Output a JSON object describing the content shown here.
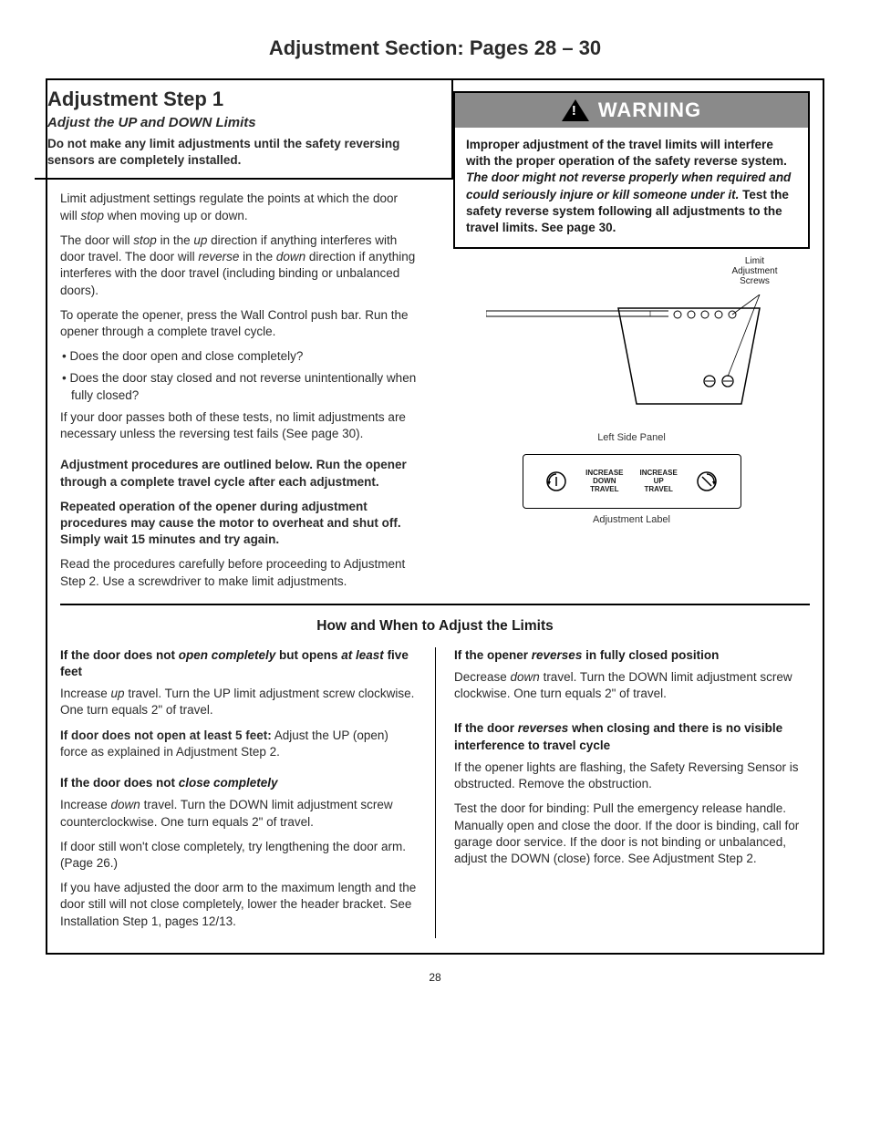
{
  "page_header": "Adjustment Section:  Pages 28 – 30",
  "step_title": "Adjustment Step 1",
  "step_subtitle": "Adjust the UP and DOWN Limits",
  "top_box_text": "Do not make any limit adjustments until the safety reversing sensors are completely installed.",
  "left": {
    "p1a": "Limit adjustment settings regulate the points at which the door will ",
    "p1b": "stop",
    "p1c": " when moving up or down.",
    "p2": "The door will <i>stop</i> in the <i>up</i> direction if anything interferes with door travel. The door will <i>reverse</i> in the <i>down</i> direction if anything interferes with the door travel (including binding or unbalanced doors).",
    "p3": "To operate the opener, press the Wall Control push bar. Run the opener through a complete travel cycle.",
    "b1": "• Does the door open and close completely?",
    "b2": "• Does the door stay closed and not reverse unintentionally when fully closed?",
    "p4": "If your door passes both of these tests, no limit adjustments are necessary unless the reversing test fails (See page 30).",
    "p5": "Adjustment procedures are outlined below. Run the opener through a complete travel cycle after each adjustment.",
    "p6": "Repeated operation of the opener during adjustment procedures may cause the motor to overheat and shut off. Simply wait 15 minutes and try again.",
    "p7": "Read the procedures carefully before proceeding to Adjustment Step 2. Use a screwdriver to make limit adjustments."
  },
  "warning": {
    "title": "WARNING",
    "body_a": "Improper adjustment of the travel limits will interfere with the proper operation of the safety reverse system. ",
    "body_i": "The door might not reverse properly when required and could seriously injure or kill someone under it.",
    "body_b": " Test the safety reverse system following all adjustments to the travel limits. See page 30."
  },
  "diagram": {
    "screws_label": "Limit\nAdjustment\nScrews",
    "panel_caption": "Left Side Panel",
    "label_caption": "Adjustment Label",
    "down_text": "INCREASE\nDOWN\nTRAVEL",
    "up_text": "INCREASE\nUP\nTRAVEL"
  },
  "howto_title": "How and When to Adjust the Limits",
  "bottom_left": {
    "h1": "If the door does not <i>open completely</i> but opens <i>at least</i> five feet",
    "p1": "Increase <i>up</i> travel. Turn the UP limit adjustment screw clockwise. One turn equals 2\" of travel.",
    "p2": "<b>If door does not open at least 5 feet:</b> Adjust the UP (open) force as explained in Adjustment Step 2.",
    "h2": "If the door does not <i>close completely</i>",
    "p3": "Increase <i>down</i> travel. Turn the DOWN limit adjustment screw counterclockwise. One turn equals 2\" of travel.",
    "p4": "If door still won't close completely, try lengthening the door arm. (Page 26.)",
    "p5": "If you have adjusted the door arm to the maximum length and the door still will not close completely, lower the header bracket. See Installation Step 1, pages 12/13."
  },
  "bottom_right": {
    "h1": "If the opener <i>reverses</i> in fully closed position",
    "p1": "Decrease <i>down</i> travel. Turn the DOWN limit adjustment screw clockwise. One turn equals 2\" of travel.",
    "h2": "If the door <i>reverses</i> when closing and there is no visible interference to travel cycle",
    "p2": "If the opener lights are flashing, the Safety Reversing Sensor is obstructed. Remove the obstruction.",
    "p3": "Test the door for binding: Pull the emergency release handle. Manually open and close the door. If the door is binding, call for garage door service. If the door is not binding or unbalanced, adjust the DOWN (close) force. See Adjustment Step 2."
  },
  "page_number": "28"
}
